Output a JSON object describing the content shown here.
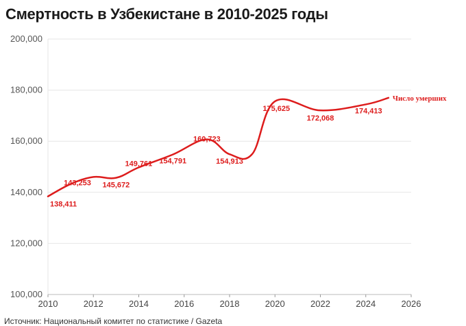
{
  "header": {
    "title": "Смертность в Узбекистане в 2010-2025 годы"
  },
  "footer": {
    "source": "Источник: Национальный комитет по статистике / Gazeta"
  },
  "colors": {
    "line": "#dd1c1c",
    "grid": "#e6e6e6",
    "axis": "#555555"
  },
  "chart_data": {
    "type": "line",
    "title": "Смертность в Узбекистане в 2010-2025 годы",
    "xlim": [
      2010,
      2026
    ],
    "ylim": [
      100000,
      200000
    ],
    "x_ticks": [
      2010,
      2012,
      2014,
      2016,
      2018,
      2020,
      2022,
      2024,
      2026
    ],
    "y_ticks": [
      100000,
      120000,
      140000,
      160000,
      180000,
      200000
    ],
    "y_tick_labels": [
      "100,000",
      "120,000",
      "140,000",
      "160,000",
      "180,000",
      "200,000"
    ],
    "grid": true,
    "series": [
      {
        "name": "Число умерших",
        "color": "#dd1c1c",
        "points": [
          {
            "x": 2010,
            "y": 138411,
            "label": "138,411"
          },
          {
            "x": 2011,
            "y": 143253,
            "label": "143,253"
          },
          {
            "x": 2012,
            "y": 146000
          },
          {
            "x": 2013,
            "y": 145672,
            "label": "145,672"
          },
          {
            "x": 2014,
            "y": 149761,
            "label": "149,761"
          },
          {
            "x": 2015.5,
            "y": 154791,
            "label": "154,791"
          },
          {
            "x": 2017,
            "y": 160723,
            "label": "160,723"
          },
          {
            "x": 2018,
            "y": 154913,
            "label": "154,913"
          },
          {
            "x": 2019,
            "y": 155000
          },
          {
            "x": 2020,
            "y": 175625,
            "label": "175,625"
          },
          {
            "x": 2022,
            "y": 172068,
            "label": "172,068"
          },
          {
            "x": 2024,
            "y": 174413,
            "label": "174,413"
          },
          {
            "x": 2025,
            "y": 177000
          }
        ]
      }
    ]
  }
}
